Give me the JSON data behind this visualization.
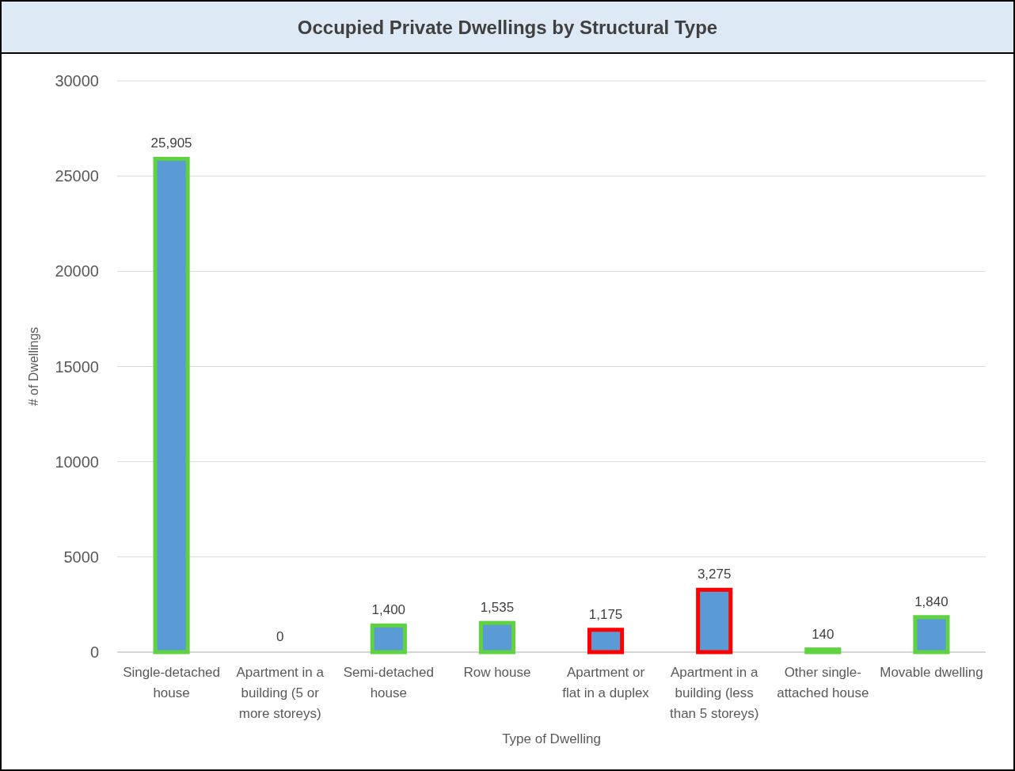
{
  "chart_data": {
    "type": "bar",
    "title": "Occupied Private Dwellings by Structural Type",
    "xlabel": "Type of Dwelling",
    "ylabel": "# of Dwellings",
    "categories": [
      "Single-detached house",
      "Apartment in a building (5 or more storeys)",
      "Semi-detached house",
      "Row house",
      "Apartment or flat in a duplex",
      "Apartment in a building (less than 5 storeys)",
      "Other single-attached house",
      "Movable dwelling"
    ],
    "values": [
      25905,
      0,
      1400,
      1535,
      1175,
      3275,
      140,
      1840
    ],
    "value_labels": [
      "25,905",
      "0",
      "1,400",
      "1,535",
      "1,175",
      "3,275",
      "140",
      "1,840"
    ],
    "color": "#5b9bd5",
    "colors": [
      "#5fd33f",
      "#5fd33f",
      "#5fd33f",
      "#5fd33f",
      "#ff0000",
      "#ff0000",
      "#5fd33f",
      "#5fd33f"
    ],
    "ylim": [
      0,
      30000
    ],
    "yticks": [
      0,
      5000,
      10000,
      15000,
      20000,
      25000,
      30000
    ],
    "grid": "y"
  }
}
